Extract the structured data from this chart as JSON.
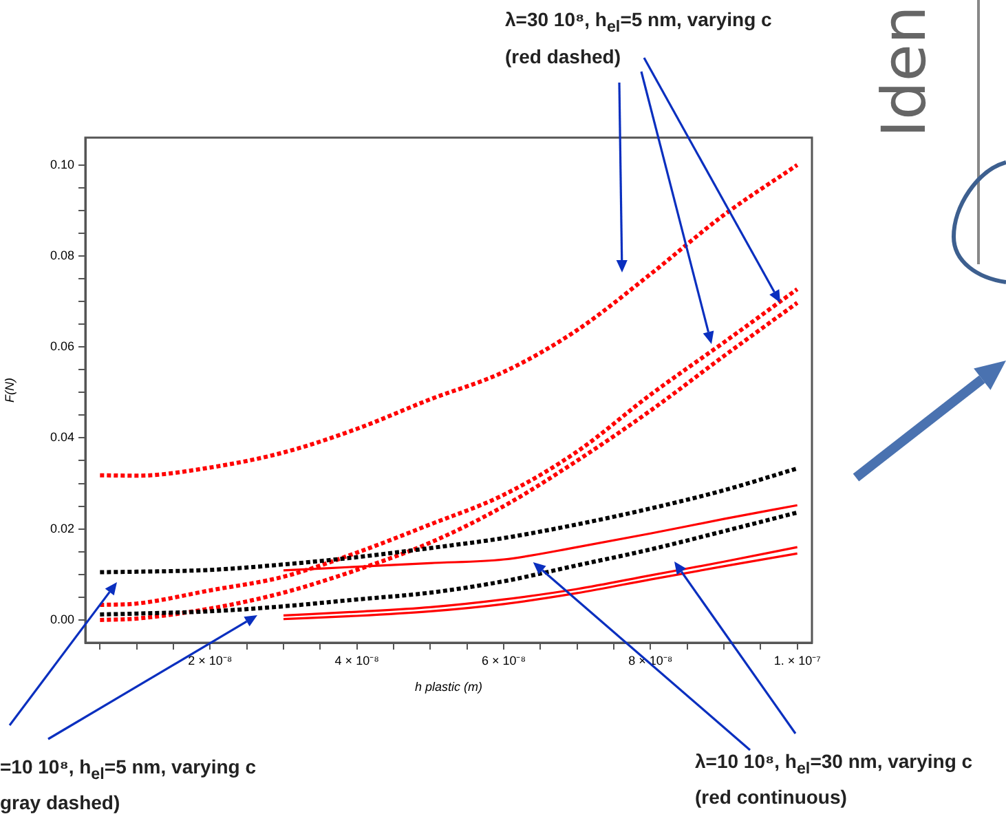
{
  "chart_data": {
    "type": "line",
    "xlabel": "h plastic (m)",
    "ylabel": "F(N)",
    "marker": "none",
    "grid": false,
    "xlim": [
      3e-09,
      1.02e-07
    ],
    "ylim": [
      -0.005,
      0.106
    ],
    "xticks": [
      {
        "value": 5e-09,
        "label": null
      },
      {
        "value": 1e-08,
        "label": null
      },
      {
        "value": 1.5e-08,
        "label": null
      },
      {
        "value": 2e-08,
        "label": "2 × 10⁻⁸"
      },
      {
        "value": 2.5e-08,
        "label": null
      },
      {
        "value": 3e-08,
        "label": null
      },
      {
        "value": 3.5e-08,
        "label": null
      },
      {
        "value": 4e-08,
        "label": "4 × 10⁻⁸"
      },
      {
        "value": 4.5e-08,
        "label": null
      },
      {
        "value": 5e-08,
        "label": null
      },
      {
        "value": 5.5e-08,
        "label": null
      },
      {
        "value": 6e-08,
        "label": "6 × 10⁻⁸"
      },
      {
        "value": 6.5e-08,
        "label": null
      },
      {
        "value": 7e-08,
        "label": null
      },
      {
        "value": 7.5e-08,
        "label": null
      },
      {
        "value": 8e-08,
        "label": "8 × 10⁻⁸"
      },
      {
        "value": 8.5e-08,
        "label": null
      },
      {
        "value": 9e-08,
        "label": null
      },
      {
        "value": 9.5e-08,
        "label": null
      },
      {
        "value": 1e-07,
        "label": "1. × 10⁻⁷"
      }
    ],
    "yticks": [
      {
        "value": 0,
        "label": "0.00"
      },
      {
        "value": 0.005,
        "label": null
      },
      {
        "value": 0.01,
        "label": null
      },
      {
        "value": 0.015,
        "label": null
      },
      {
        "value": 0.02,
        "label": "0.02"
      },
      {
        "value": 0.025,
        "label": null
      },
      {
        "value": 0.03,
        "label": null
      },
      {
        "value": 0.035,
        "label": null
      },
      {
        "value": 0.04,
        "label": "0.04"
      },
      {
        "value": 0.045,
        "label": null
      },
      {
        "value": 0.05,
        "label": null
      },
      {
        "value": 0.055,
        "label": null
      },
      {
        "value": 0.06,
        "label": "0.06"
      },
      {
        "value": 0.065,
        "label": null
      },
      {
        "value": 0.07,
        "label": null
      },
      {
        "value": 0.075,
        "label": null
      },
      {
        "value": 0.08,
        "label": "0.08"
      },
      {
        "value": 0.085,
        "label": null
      },
      {
        "value": 0.09,
        "label": null
      },
      {
        "value": 0.095,
        "label": null
      },
      {
        "value": 0.1,
        "label": "0.10"
      }
    ],
    "series": [
      {
        "type": "line",
        "line_style": "dashed",
        "color": "#ff0000",
        "x": [
          5e-09,
          1e-08,
          2e-08,
          3e-08,
          4e-08,
          5e-08,
          6e-08,
          7e-08,
          8e-08,
          9e-08,
          1e-07
        ],
        "values": [
          0.0318,
          0.0317,
          0.0335,
          0.0368,
          0.042,
          0.0485,
          0.0545,
          0.0637,
          0.076,
          0.089,
          0.1
        ]
      },
      {
        "type": "line",
        "line_style": "dashed",
        "color": "#ff0000",
        "x": [
          5e-09,
          1e-08,
          2e-08,
          3e-08,
          4e-08,
          5e-08,
          6e-08,
          7e-08,
          8e-08,
          9e-08,
          1e-07
        ],
        "values": [
          0.0033,
          0.0036,
          0.0065,
          0.0095,
          0.0148,
          0.021,
          0.0275,
          0.037,
          0.0495,
          0.061,
          0.0727
        ]
      },
      {
        "type": "line",
        "line_style": "dashed",
        "color": "#ff0000",
        "x": [
          5e-09,
          1e-08,
          2e-08,
          3e-08,
          4e-08,
          5e-08,
          6e-08,
          7e-08,
          8e-08,
          9e-08,
          1e-07
        ],
        "values": [
          0.0,
          0.0003,
          0.0025,
          0.006,
          0.011,
          0.017,
          0.025,
          0.035,
          0.046,
          0.058,
          0.0697
        ]
      },
      {
        "type": "line",
        "line_style": "dashed",
        "color": "#000000",
        "x": [
          5e-09,
          1e-08,
          2e-08,
          3e-08,
          4e-08,
          5e-08,
          6e-08,
          7e-08,
          8e-08,
          9e-08,
          1e-07
        ],
        "values": [
          0.0105,
          0.0106,
          0.011,
          0.0122,
          0.0138,
          0.0158,
          0.018,
          0.021,
          0.0245,
          0.0285,
          0.0333
        ]
      },
      {
        "type": "line",
        "line_style": "dashed",
        "color": "#000000",
        "x": [
          5e-09,
          1e-08,
          2e-08,
          3e-08,
          4e-08,
          5e-08,
          6e-08,
          7e-08,
          8e-08,
          9e-08,
          1e-07
        ],
        "values": [
          0.0012,
          0.0014,
          0.0019,
          0.003,
          0.0045,
          0.006,
          0.0085,
          0.012,
          0.0155,
          0.0195,
          0.0236
        ]
      },
      {
        "type": "line",
        "line_style": "solid",
        "color": "#ff0000",
        "x": [
          3e-08,
          4e-08,
          5e-08,
          6e-08,
          7e-08,
          8e-08,
          9e-08,
          1e-07
        ],
        "values": [
          0.0109,
          0.0117,
          0.0125,
          0.0133,
          0.016,
          0.019,
          0.0222,
          0.0252
        ]
      },
      {
        "type": "line",
        "line_style": "solid",
        "color": "#ff0000",
        "x": [
          3e-08,
          4e-08,
          5e-08,
          6e-08,
          7e-08,
          8e-08,
          9e-08,
          1e-07
        ],
        "values": [
          0.001,
          0.0018,
          0.0028,
          0.0045,
          0.0068,
          0.0098,
          0.0128,
          0.016
        ]
      },
      {
        "type": "line",
        "line_style": "solid",
        "color": "#ff0000",
        "x": [
          3e-08,
          4e-08,
          5e-08,
          6e-08,
          7e-08,
          8e-08,
          9e-08,
          1e-07
        ],
        "values": [
          0.0002,
          0.0009,
          0.0019,
          0.0035,
          0.0059,
          0.0089,
          0.0118,
          0.0146
        ]
      }
    ],
    "annotations": [
      "λ=30 10⁸, h$_{el}$=5 nm, varying c",
      "(red dashed)",
      "=10 10⁸, h$_{el}$=5 nm, varying c",
      "gray dashed)",
      {
        "text": "λ=10 10⁸, h$_{el}$=30 nm, varying c",
        "x": 6.4e-08,
        "y": 0.0127
      },
      "(red continuous)",
      "Iden"
    ]
  }
}
